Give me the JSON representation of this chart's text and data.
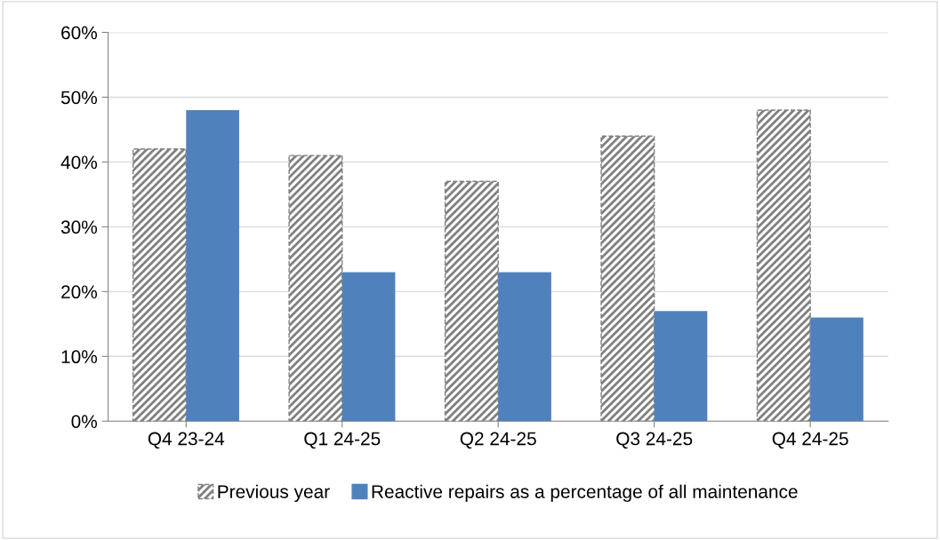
{
  "chart_data": {
    "type": "bar",
    "categories": [
      "Q4 23-24",
      "Q1 24-25",
      "Q2 24-25",
      "Q3 24-25",
      "Q4 24-25"
    ],
    "series": [
      {
        "name": "Previous year",
        "color": "#808080",
        "values": [
          42,
          41,
          37,
          44,
          48
        ]
      },
      {
        "name": "Reactive repairs as a percentage of all maintenance",
        "color": "#4f81bd",
        "values": [
          48,
          23,
          23,
          17,
          16
        ]
      }
    ],
    "ylim": [
      0,
      60
    ],
    "yticks": [
      {
        "value": 0,
        "label": "0%"
      },
      {
        "value": 10,
        "label": "10%"
      },
      {
        "value": 20,
        "label": "20%"
      },
      {
        "value": 30,
        "label": "30%"
      },
      {
        "value": 40,
        "label": "40%"
      },
      {
        "value": 50,
        "label": "50%"
      },
      {
        "value": 60,
        "label": "60%"
      }
    ],
    "grid": "y",
    "legend": "bottom"
  }
}
